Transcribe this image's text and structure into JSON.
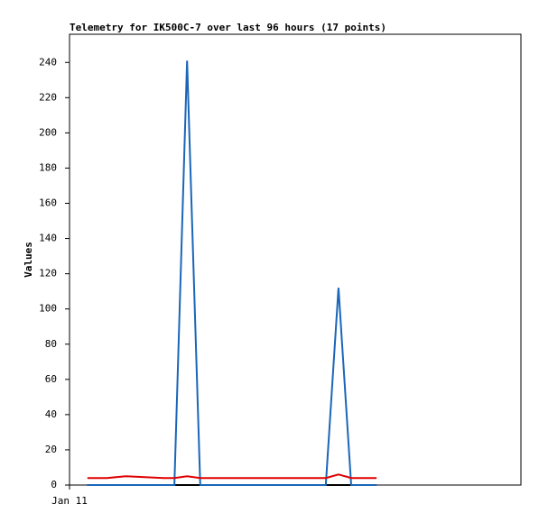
{
  "chart_data": {
    "type": "line",
    "title": "Telemetry for IK500C-7 over last 96 hours (17 points)",
    "y_label": "Values",
    "x": [
      3.8,
      8,
      12,
      16,
      20,
      22.3,
      25,
      27.8,
      32,
      38,
      44,
      50,
      54.5,
      57.2,
      59.9,
      62.5,
      65.3
    ],
    "xlim": [
      0,
      96
    ],
    "xticks": [
      {
        "value": 0,
        "label": "Jan 11"
      }
    ],
    "ylim": [
      0,
      256
    ],
    "yticks": [
      0,
      20,
      40,
      60,
      80,
      100,
      120,
      140,
      160,
      180,
      200,
      220,
      240
    ],
    "series": [
      {
        "color": "#000000",
        "values": [
          0,
          0,
          0,
          0,
          0,
          0,
          0,
          0,
          0,
          0,
          0,
          0,
          0,
          0,
          0,
          0,
          0
        ]
      },
      {
        "color": "#1a66b8",
        "values": [
          0,
          0,
          0,
          0,
          0,
          0,
          241,
          0,
          0,
          0,
          0,
          0,
          0,
          112,
          0,
          0,
          0
        ]
      },
      {
        "color": "#e00000",
        "values": [
          4,
          4,
          5,
          4.5,
          4,
          4,
          5,
          4,
          4,
          4,
          4,
          4,
          4,
          6,
          4,
          4,
          4
        ]
      }
    ]
  }
}
